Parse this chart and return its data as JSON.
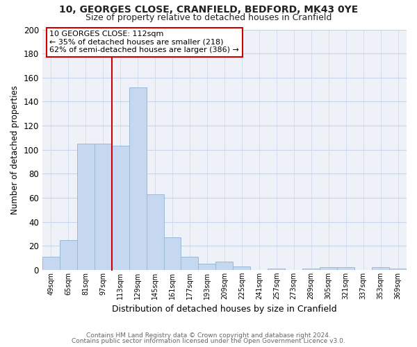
{
  "title1": "10, GEORGES CLOSE, CRANFIELD, BEDFORD, MK43 0YE",
  "title2": "Size of property relative to detached houses in Cranfield",
  "xlabel": "Distribution of detached houses by size in Cranfield",
  "ylabel": "Number of detached properties",
  "footer1": "Contains HM Land Registry data © Crown copyright and database right 2024.",
  "footer2": "Contains public sector information licensed under the Open Government Licence v3.0.",
  "bar_labels": [
    "49sqm",
    "65sqm",
    "81sqm",
    "97sqm",
    "113sqm",
    "129sqm",
    "145sqm",
    "161sqm",
    "177sqm",
    "193sqm",
    "209sqm",
    "225sqm",
    "241sqm",
    "257sqm",
    "273sqm",
    "289sqm",
    "305sqm",
    "321sqm",
    "337sqm",
    "353sqm",
    "369sqm"
  ],
  "bar_values": [
    11,
    25,
    105,
    105,
    103,
    152,
    63,
    27,
    11,
    5,
    7,
    3,
    0,
    1,
    0,
    1,
    2,
    2,
    0,
    2,
    1
  ],
  "bar_color": "#c5d8f0",
  "bar_edge_color": "#9ab8d8",
  "vline_color": "#cc0000",
  "annotation_title": "10 GEORGES CLOSE: 112sqm",
  "annotation_line1": "← 35% of detached houses are smaller (218)",
  "annotation_line2": "62% of semi-detached houses are larger (386) →",
  "annotation_box_facecolor": "#ffffff",
  "annotation_box_edgecolor": "#cc0000",
  "ylim": [
    0,
    200
  ],
  "yticks": [
    0,
    20,
    40,
    60,
    80,
    100,
    120,
    140,
    160,
    180,
    200
  ],
  "bg_color": "#ffffff",
  "plot_bg_color": "#eef2f8",
  "grid_color": "#c8d4e8",
  "title1_fontsize": 10,
  "title2_fontsize": 9
}
